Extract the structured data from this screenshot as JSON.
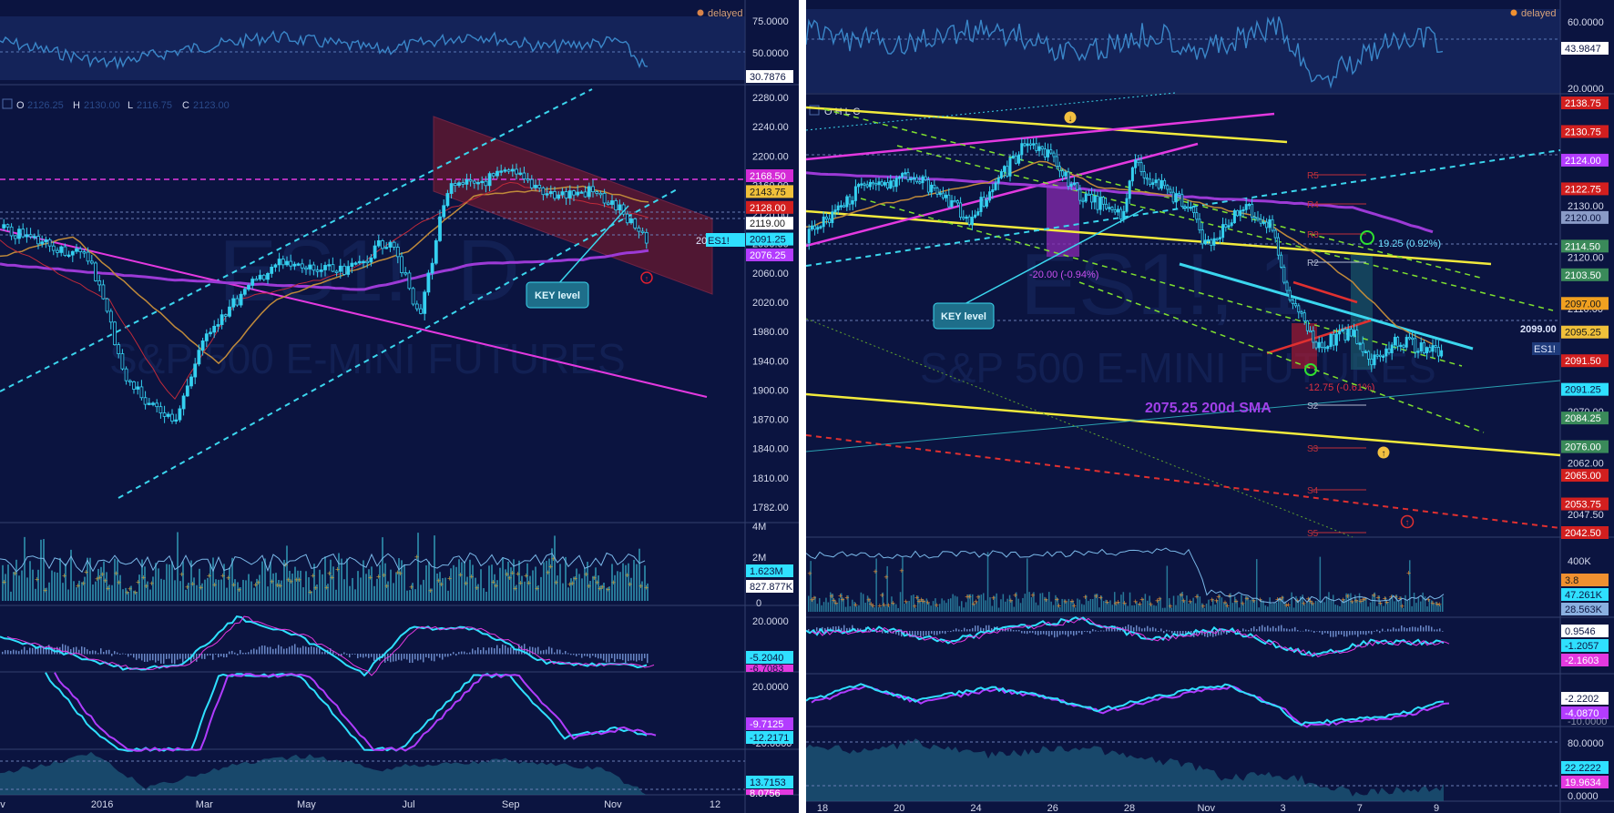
{
  "status": "delayed",
  "colors": {
    "background": "#0b1440",
    "candles": "#35d0f0",
    "rsi": "#3a86c8",
    "macd_line": "#2fe0ff",
    "signal": "#b03cff",
    "trend_magenta": "#e339e0",
    "trend_yellow": "#f2ea3c",
    "channel_cyan": "#3bd6ee",
    "dashed_green": "#7fe02f",
    "dashed_red": "#e03030"
  },
  "left": {
    "rsi": {
      "ticks": [
        "75.0000",
        "50.0000"
      ],
      "last": "30.7876"
    },
    "ohlc": {
      "o_label": "O",
      "o": "2126.25",
      "h_label": "H",
      "h": "2130.00",
      "l_label": "L",
      "l": "2116.75",
      "c_label": "C",
      "c": "2123.00"
    },
    "watermark_symbol": "ES1!, D",
    "watermark_name": "S&P 500 E-MINI FUTURES",
    "price_ticks": [
      "2280.00",
      "2240.00",
      "2200.00",
      "2160.00",
      "2120.00",
      "2090.00",
      "2060.00",
      "2020.00",
      "1980.00",
      "1940.00",
      "1900.00",
      "1870.00",
      "1840.00",
      "1810.00",
      "1782.00"
    ],
    "tags": [
      {
        "text": "2168.50",
        "bg": "#d42bd6",
        "fg": "#ffffff"
      },
      {
        "text": "2143.75",
        "bg": "#f0c03a",
        "fg": "#1a1a1a"
      },
      {
        "text": "2128.00",
        "bg": "#d21f1f",
        "fg": "#ffffff"
      },
      {
        "text": "2119.00",
        "bg": "#ffffff",
        "fg": "#1a1a1a"
      },
      {
        "text": "2091.25",
        "bg": "#2fe0ff",
        "fg": "#0b1440"
      },
      {
        "text": "2076.25",
        "bg": "#b33cff",
        "fg": "#ffffff"
      }
    ],
    "symbol_tag": "ES1!",
    "symbol_tag_prefix": "20",
    "callout": "KEY level",
    "volume": {
      "ticks": [
        "4M",
        "2M",
        "0"
      ],
      "tags": [
        "1.623M",
        "827.877K"
      ]
    },
    "macd": {
      "ticks": [
        "20.0000"
      ],
      "tags": [
        "-5.2040",
        "-6.7083"
      ]
    },
    "stoch": {
      "ticks": [
        "20.0000",
        "-20.0000"
      ],
      "tags": [
        "-9.7125",
        "-12.2171"
      ]
    },
    "bottom": {
      "tags": [
        "13.7153",
        "8.0756"
      ]
    },
    "x_labels": [
      "ov",
      "2016",
      "Mar",
      "May",
      "Jul",
      "Sep",
      "Nov",
      "12"
    ]
  },
  "right": {
    "rsi": {
      "ticks": [
        "60.0000",
        "20.0000"
      ],
      "last": "43.9847"
    },
    "ohlc_fragment": "O  H  L  C",
    "watermark_symbol": "ES1!, 1",
    "watermark_name": "S&P 500 E-MINI FUTURES",
    "price_ticks": [
      "2130.00",
      "2120.00",
      "2110.00",
      "2086.00",
      "2070.00",
      "2062.00",
      "2047.50"
    ],
    "tags": [
      {
        "text": "2138.75",
        "bg": "#d21f1f",
        "fg": "#ffffff"
      },
      {
        "text": "2130.75",
        "bg": "#d21f1f",
        "fg": "#ffffff"
      },
      {
        "text": "2124.00",
        "bg": "#b33cff",
        "fg": "#ffffff"
      },
      {
        "text": "2122.75",
        "bg": "#d21f1f",
        "fg": "#ffffff"
      },
      {
        "text": "2120.00",
        "bg": "#8a9bc7",
        "fg": "#0b1440"
      },
      {
        "text": "2114.50",
        "bg": "#3a8a5a",
        "fg": "#ffffff"
      },
      {
        "text": "2103.50",
        "bg": "#3a8a5a",
        "fg": "#ffffff"
      },
      {
        "text": "2097.00",
        "bg": "#f0a020",
        "fg": "#1a1a1a"
      },
      {
        "text": "2095.25",
        "bg": "#f0c03a",
        "fg": "#1a1a1a"
      },
      {
        "text": "2091.50",
        "bg": "#d21f1f",
        "fg": "#ffffff"
      },
      {
        "text": "2091.25",
        "bg": "#2fe0ff",
        "fg": "#0b1440"
      },
      {
        "text": "2084.25",
        "bg": "#3a8a5a",
        "fg": "#ffffff"
      },
      {
        "text": "2076.00",
        "bg": "#3a8a5a",
        "fg": "#ffffff"
      },
      {
        "text": "2065.00",
        "bg": "#d21f1f",
        "fg": "#ffffff"
      },
      {
        "text": "2053.75",
        "bg": "#d21f1f",
        "fg": "#ffffff"
      },
      {
        "text": "2042.50",
        "bg": "#d21f1f",
        "fg": "#ffffff"
      }
    ],
    "price_line_label": "2099.00",
    "symbol_tag": "ES1!",
    "callout": "KEY level",
    "sma_label": "2075.25 200d SMA",
    "measure_down": "-20.00 (-0.94%)",
    "measure_up": "19.25 (0.92%)",
    "measure_down2": "-12.75 (-0.61%)",
    "pivots": [
      "R5",
      "R4",
      "R3",
      "R2",
      "S2",
      "S3",
      "S4",
      "S5"
    ],
    "volume": {
      "ticks": [
        "400K"
      ],
      "tags": [
        "3.8",
        "47.261K",
        "28.563K"
      ]
    },
    "macd": {
      "tags": [
        "0.9546",
        "-1.2057",
        "-2.1603"
      ]
    },
    "stoch": {
      "ticks": [
        "-10.0000"
      ],
      "tags": [
        "-2.2202",
        "-4.0870"
      ]
    },
    "bottom": {
      "ticks": [
        "80.0000",
        "0.0000"
      ],
      "tags": [
        "22.2222",
        "19.9634"
      ]
    },
    "x_labels": [
      "18",
      "20",
      "24",
      "26",
      "28",
      "Nov",
      "3",
      "7",
      "9"
    ]
  }
}
